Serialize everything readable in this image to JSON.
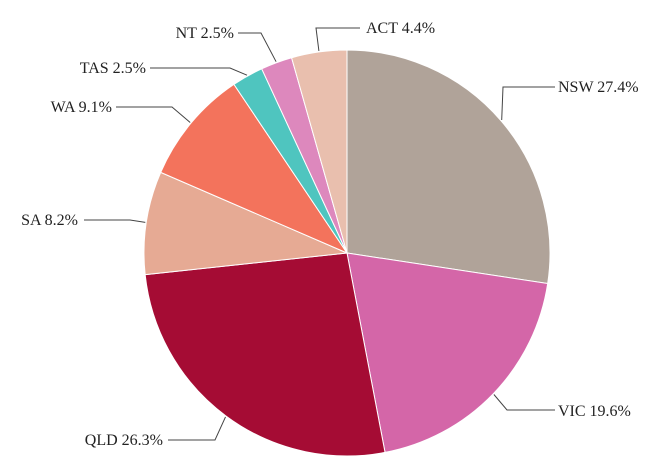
{
  "chart_data": {
    "type": "pie",
    "title": "",
    "slices": [
      {
        "label": "NSW",
        "value": 27.4,
        "display": "NSW 27.4%",
        "color": "#b0a399"
      },
      {
        "label": "VIC",
        "value": 19.6,
        "display": "VIC 19.6%",
        "color": "#d466a8"
      },
      {
        "label": "QLD",
        "value": 26.3,
        "display": "QLD 26.3%",
        "color": "#a50c34"
      },
      {
        "label": "SA",
        "value": 8.2,
        "display": "SA 8.2%",
        "color": "#e6aa94"
      },
      {
        "label": "WA",
        "value": 9.1,
        "display": "WA 9.1%",
        "color": "#f3735c"
      },
      {
        "label": "TAS",
        "value": 2.5,
        "display": "TAS 2.5%",
        "color": "#4fc5bf"
      },
      {
        "label": "NT",
        "value": 2.5,
        "display": "NT 2.5%",
        "color": "#dd88bd"
      },
      {
        "label": "ACT",
        "value": 4.4,
        "display": "ACT 4.4%",
        "color": "#e9bfae"
      }
    ]
  }
}
